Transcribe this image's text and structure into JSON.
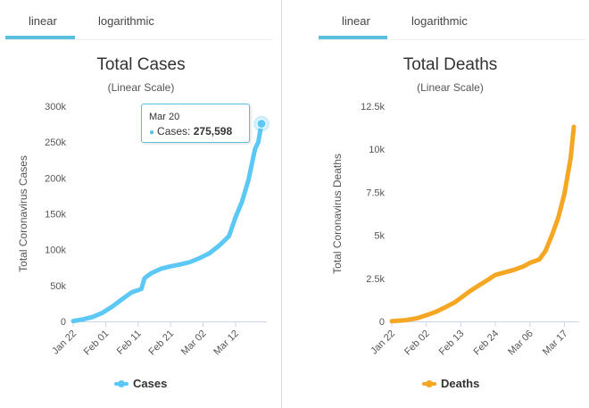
{
  "colors": {
    "cases": "#5bc8f5",
    "deaths": "#f5a623",
    "tab_accent": "#5bc0de"
  },
  "left_panel": {
    "tabs": [
      {
        "label": "linear",
        "active": true
      },
      {
        "label": "logarithmic",
        "active": false
      }
    ],
    "legend_label": "Cases",
    "tooltip": {
      "date": "Mar 20",
      "label": "Cases:",
      "value": "275,598"
    }
  },
  "right_panel": {
    "tabs": [
      {
        "label": "linear",
        "active": true
      },
      {
        "label": "logarithmic",
        "active": false
      }
    ],
    "legend_label": "Deaths"
  },
  "chart_data": [
    {
      "type": "line",
      "title": "Total Cases",
      "subtitle": "(Linear Scale)",
      "xlabel": "",
      "ylabel": "Total Coronavirus Cases",
      "ylim": [
        0,
        300000
      ],
      "y_ticks": [
        "0",
        "50k",
        "100k",
        "150k",
        "200k",
        "250k",
        "300k"
      ],
      "x_ticks": [
        "Jan 22",
        "Feb 01",
        "Feb 11",
        "Feb 21",
        "Mar 02",
        "Mar 12"
      ],
      "grid": false,
      "legend": "bottom",
      "series": [
        {
          "name": "Cases",
          "x": [
            "Jan 22",
            "Jan 25",
            "Jan 28",
            "Jan 31",
            "Feb 03",
            "Feb 06",
            "Feb 09",
            "Feb 12",
            "Feb 13",
            "Feb 15",
            "Feb 18",
            "Feb 21",
            "Feb 24",
            "Feb 27",
            "Mar 01",
            "Mar 04",
            "Mar 07",
            "Mar 10",
            "Mar 12",
            "Mar 14",
            "Mar 16",
            "Mar 18",
            "Mar 19",
            "Mar 20"
          ],
          "values": [
            555,
            2900,
            6100,
            11900,
            20600,
            30800,
            40500,
            45200,
            60400,
            67100,
            73300,
            76800,
            79400,
            82800,
            88400,
            95100,
            105800,
            119000,
            145000,
            167000,
            197000,
            240000,
            250000,
            275598
          ]
        }
      ]
    },
    {
      "type": "line",
      "title": "Total Deaths",
      "subtitle": "(Linear Scale)",
      "xlabel": "",
      "ylabel": "Total Coronavirus Deaths",
      "ylim": [
        0,
        12500
      ],
      "y_ticks": [
        "0",
        "2.5k",
        "5k",
        "7.5k",
        "10k",
        "12.5k"
      ],
      "x_ticks": [
        "Jan 22",
        "Feb 02",
        "Feb 13",
        "Feb 24",
        "Mar 06",
        "Mar 17"
      ],
      "grid": false,
      "legend": "bottom",
      "series": [
        {
          "name": "Deaths",
          "x": [
            "Jan 22",
            "Jan 26",
            "Jan 30",
            "Feb 02",
            "Feb 05",
            "Feb 08",
            "Feb 11",
            "Feb 13",
            "Feb 16",
            "Feb 19",
            "Feb 22",
            "Feb 24",
            "Feb 27",
            "Mar 01",
            "Mar 04",
            "Mar 06",
            "Mar 09",
            "Mar 11",
            "Mar 13",
            "Mar 15",
            "Mar 17",
            "Mar 19",
            "Mar 20"
          ],
          "values": [
            17,
            60,
            180,
            360,
            550,
            820,
            1100,
            1370,
            1770,
            2120,
            2460,
            2700,
            2850,
            3000,
            3200,
            3400,
            3600,
            4100,
            5000,
            6000,
            7400,
            9500,
            11300
          ]
        }
      ]
    }
  ]
}
